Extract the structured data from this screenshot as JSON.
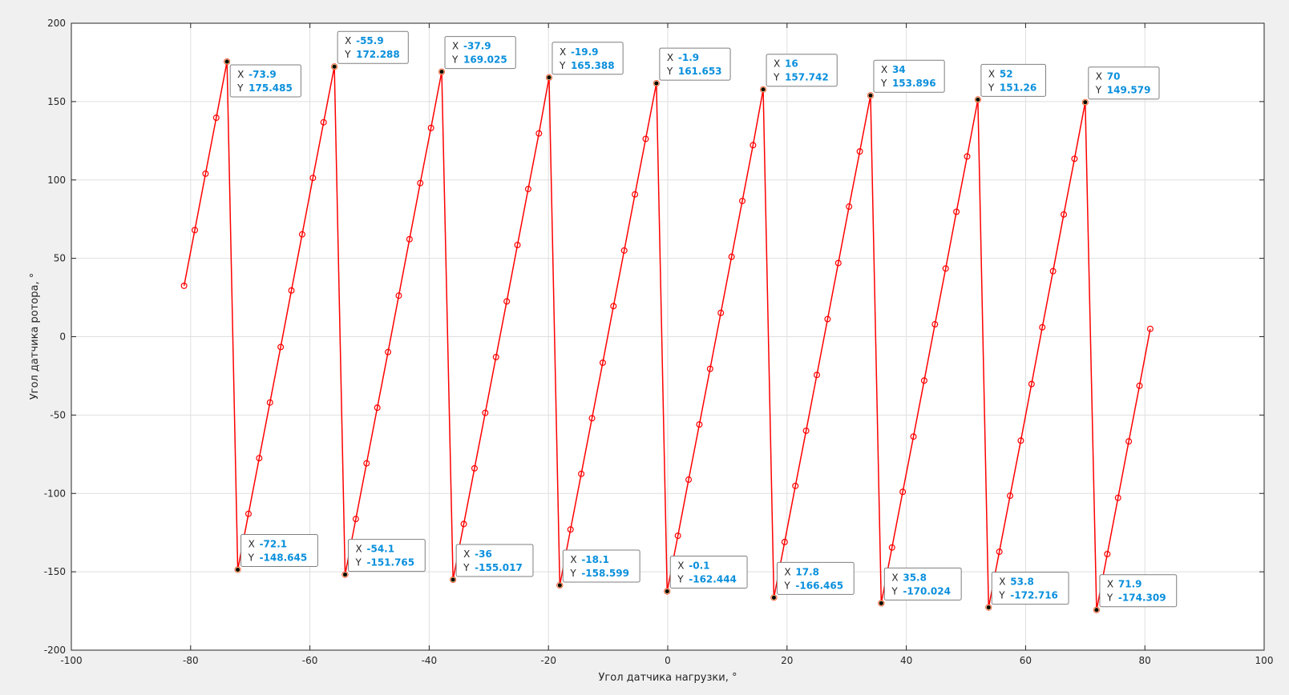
{
  "chart_data": {
    "type": "line",
    "title": "",
    "xlabel": "Угол датчика нагрузки, °",
    "ylabel": "Угол датчика ротора, °",
    "xlim": [
      -100,
      100
    ],
    "ylim": [
      -200,
      200
    ],
    "x_ticks": [
      -100,
      -80,
      -60,
      -40,
      -20,
      0,
      20,
      40,
      60,
      80,
      100
    ],
    "y_ticks": [
      -200,
      -150,
      -100,
      -50,
      0,
      50,
      100,
      150,
      200
    ],
    "x_tick_labels": [
      "-100",
      "-80",
      "-60",
      "-40",
      "-20",
      "0",
      "20",
      "40",
      "60",
      "80",
      "100"
    ],
    "y_tick_labels": [
      "-200",
      "-150",
      "-100",
      "-50",
      "0",
      "50",
      "100",
      "150",
      "200"
    ],
    "grid": true,
    "colors": {
      "line": "#ff0000",
      "marker": "#ff0000",
      "datatip_value": "#0a8fdc",
      "background": "#ffffff",
      "figure": "#f0f0f0"
    },
    "series": [
      {
        "x": [
          -81.1,
          -79.3,
          -77.5,
          -75.7,
          -73.9,
          -72.1,
          -70.3,
          -68.5,
          -66.7,
          -64.9,
          -63.1,
          -61.3,
          -59.5,
          -57.7,
          -55.9,
          -54.1,
          -52.3,
          -50.5,
          -48.7,
          -46.9,
          -45.1,
          -43.3,
          -41.5,
          -39.7,
          -37.9,
          -36.0,
          -34.2,
          -32.4,
          -30.6,
          -28.8,
          -27.0,
          -25.2,
          -23.4,
          -21.6,
          -19.9,
          -18.1,
          -16.3,
          -14.5,
          -12.7,
          -10.9,
          -9.1,
          -7.3,
          -5.5,
          -3.7,
          -1.9,
          -0.1,
          1.7,
          3.5,
          5.3,
          7.1,
          8.9,
          10.7,
          12.5,
          14.3,
          16.0,
          17.8,
          19.6,
          21.4,
          23.2,
          25.0,
          26.8,
          28.6,
          30.4,
          32.2,
          34.0,
          35.8,
          37.6,
          39.4,
          41.2,
          43.0,
          44.8,
          46.6,
          48.4,
          50.2,
          52.0,
          53.8,
          55.6,
          57.4,
          59.2,
          61.0,
          62.8,
          64.6,
          66.4,
          68.2,
          70.0,
          71.9,
          73.7,
          75.5,
          77.3,
          79.1,
          80.9
        ],
        "y": [
          32.5,
          68.0,
          104.0,
          139.7,
          175.485,
          -148.645,
          -113.0,
          -77.5,
          -42.0,
          -6.6,
          29.5,
          65.3,
          101.3,
          136.8,
          172.288,
          -151.765,
          -116.3,
          -80.8,
          -45.3,
          -9.8,
          26.2,
          62.2,
          98.0,
          133.2,
          169.025,
          -155.017,
          -119.5,
          -84.0,
          -48.6,
          -13.0,
          22.5,
          58.5,
          94.2,
          129.7,
          165.388,
          -158.599,
          -123.0,
          -87.5,
          -52.0,
          -16.6,
          19.5,
          55.0,
          90.8,
          126.2,
          161.653,
          -162.444,
          -127.0,
          -91.2,
          -56.0,
          -20.5,
          15.2,
          51.0,
          86.6,
          122.2,
          157.742,
          -166.465,
          -131.0,
          -95.2,
          -60.0,
          -24.4,
          11.2,
          47.0,
          83.0,
          118.2,
          153.896,
          -170.024,
          -134.5,
          -99.0,
          -63.7,
          -28.0,
          7.9,
          43.5,
          79.7,
          115.0,
          151.26,
          -172.716,
          -137.2,
          -101.5,
          -66.3,
          -30.2,
          6.0,
          41.8,
          78.0,
          113.5,
          149.579,
          -174.309,
          -138.7,
          -102.8,
          -66.8,
          -31.3,
          5.0
        ]
      }
    ],
    "datatips": [
      {
        "x": "-73.9",
        "y": "175.485",
        "xv": -73.9,
        "yv": 175.485,
        "dir": "below"
      },
      {
        "x": "-72.1",
        "y": "-148.645",
        "xv": -72.1,
        "yv": -148.645,
        "dir": "above"
      },
      {
        "x": "-55.9",
        "y": "172.288",
        "xv": -55.9,
        "yv": 172.288,
        "dir": "above"
      },
      {
        "x": "-54.1",
        "y": "-151.765",
        "xv": -54.1,
        "yv": -151.765,
        "dir": "above"
      },
      {
        "x": "-37.9",
        "y": "169.025",
        "xv": -37.9,
        "yv": 169.025,
        "dir": "above"
      },
      {
        "x": "-36",
        "y": "-155.017",
        "xv": -36.0,
        "yv": -155.017,
        "dir": "above"
      },
      {
        "x": "-19.9",
        "y": "165.388",
        "xv": -19.9,
        "yv": 165.388,
        "dir": "above"
      },
      {
        "x": "-18.1",
        "y": "-158.599",
        "xv": -18.1,
        "yv": -158.599,
        "dir": "above"
      },
      {
        "x": "-1.9",
        "y": "161.653",
        "xv": -1.9,
        "yv": 161.653,
        "dir": "above"
      },
      {
        "x": "-0.1",
        "y": "-162.444",
        "xv": -0.1,
        "yv": -162.444,
        "dir": "above"
      },
      {
        "x": "16",
        "y": "157.742",
        "xv": 16.0,
        "yv": 157.742,
        "dir": "above"
      },
      {
        "x": "17.8",
        "y": "-166.465",
        "xv": 17.8,
        "yv": -166.465,
        "dir": "above"
      },
      {
        "x": "34",
        "y": "153.896",
        "xv": 34.0,
        "yv": 153.896,
        "dir": "above"
      },
      {
        "x": "35.8",
        "y": "-170.024",
        "xv": 35.8,
        "yv": -170.024,
        "dir": "above"
      },
      {
        "x": "52",
        "y": "151.26",
        "xv": 52.0,
        "yv": 151.26,
        "dir": "above"
      },
      {
        "x": "53.8",
        "y": "-172.716",
        "xv": 53.8,
        "yv": -172.716,
        "dir": "above"
      },
      {
        "x": "70",
        "y": "149.579",
        "xv": 70.0,
        "yv": 149.579,
        "dir": "above"
      },
      {
        "x": "71.9",
        "y": "-174.309",
        "xv": 71.9,
        "yv": -174.309,
        "dir": "above"
      }
    ],
    "datatip_x_key": "X",
    "datatip_y_key": "Y"
  }
}
